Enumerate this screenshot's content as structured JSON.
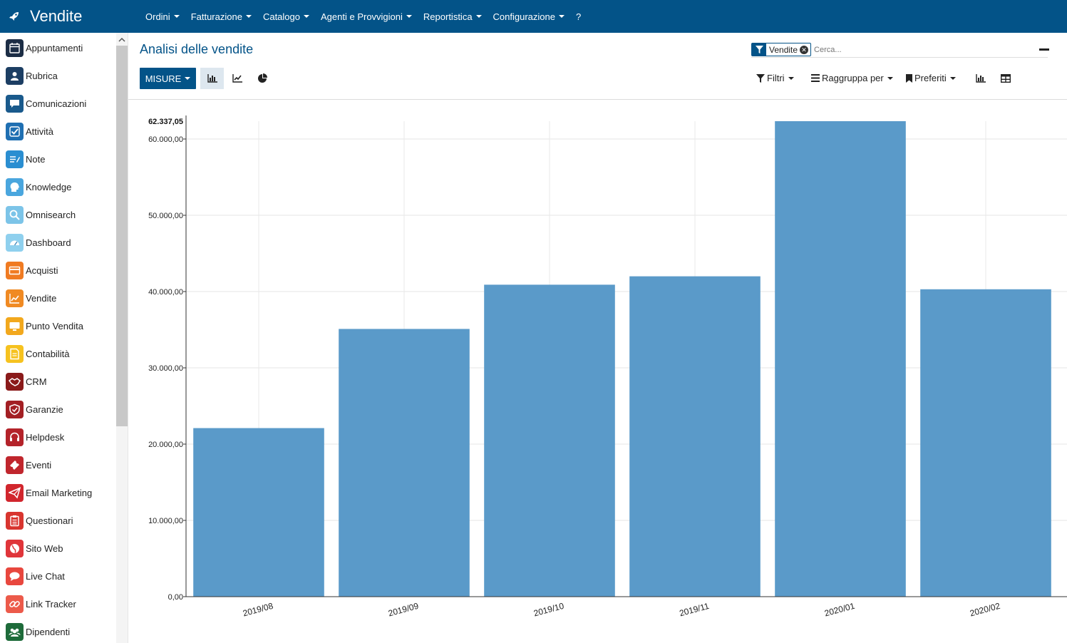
{
  "navbar": {
    "app_title": "Vendite",
    "menu": [
      {
        "label": "Ordini",
        "dropdown": true
      },
      {
        "label": "Fatturazione",
        "dropdown": true
      },
      {
        "label": "Catalogo",
        "dropdown": true
      },
      {
        "label": "Agenti e Provvigioni",
        "dropdown": true
      },
      {
        "label": "Reportistica",
        "dropdown": true
      },
      {
        "label": "Configurazione",
        "dropdown": true
      },
      {
        "label": "?",
        "dropdown": false
      }
    ]
  },
  "sidebar": {
    "items": [
      {
        "label": "Appuntamenti",
        "icon": "calendar-icon",
        "color": "#1c2d45"
      },
      {
        "label": "Rubrica",
        "icon": "contacts-icon",
        "color": "#1c3e63"
      },
      {
        "label": "Comunicazioni",
        "icon": "chat-bubble-icon",
        "color": "#1a5a8c"
      },
      {
        "label": "Attività",
        "icon": "check-icon",
        "color": "#1f6fb2"
      },
      {
        "label": "Note",
        "icon": "note-icon",
        "color": "#2a8ed1"
      },
      {
        "label": "Knowledge",
        "icon": "head-icon",
        "color": "#4aa6de"
      },
      {
        "label": "Omnisearch",
        "icon": "search-icon",
        "color": "#7cc4e8"
      },
      {
        "label": "Dashboard",
        "icon": "gauge-icon",
        "color": "#8fd0ee"
      },
      {
        "label": "Acquisti",
        "icon": "credit-card-icon",
        "color": "#f07b22"
      },
      {
        "label": "Vendite",
        "icon": "trend-icon",
        "color": "#f08a23"
      },
      {
        "label": "Punto Vendita",
        "icon": "monitor-icon",
        "color": "#f2a81d"
      },
      {
        "label": "Contabilità",
        "icon": "document-icon",
        "color": "#f6c21f"
      },
      {
        "label": "CRM",
        "icon": "handshake-icon",
        "color": "#8a1a1a"
      },
      {
        "label": "Garanzie",
        "icon": "shield-icon",
        "color": "#a31f24"
      },
      {
        "label": "Helpdesk",
        "icon": "headset-icon",
        "color": "#b4232a"
      },
      {
        "label": "Eventi",
        "icon": "ticket-icon",
        "color": "#c0262d"
      },
      {
        "label": "Email Marketing",
        "icon": "paper-plane-icon",
        "color": "#d1262d"
      },
      {
        "label": "Questionari",
        "icon": "clipboard-icon",
        "color": "#d8352f"
      },
      {
        "label": "Sito Web",
        "icon": "globe-icon",
        "color": "#e0353a"
      },
      {
        "label": "Live Chat",
        "icon": "chat-icon",
        "color": "#e8473e"
      },
      {
        "label": "Link Tracker",
        "icon": "link-icon",
        "color": "#ec5a4a"
      },
      {
        "label": "Dipendenti",
        "icon": "users-icon",
        "color": "#1e6b3a"
      }
    ]
  },
  "control_panel": {
    "title": "Analisi delle vendite",
    "facet_label": "Vendite",
    "search_placeholder": "Cerca...",
    "measures_label": "MISURE",
    "filters_label": "Filtri",
    "groupby_label": "Raggruppa per",
    "favorites_label": "Preferiti"
  },
  "colors": {
    "navbar": "#035388",
    "bar": "#5a9ac9",
    "accent": "#035388"
  },
  "chart_data": {
    "type": "bar",
    "categories": [
      "2019/08",
      "2019/09",
      "2019/10",
      "2019/11",
      "2020/01",
      "2020/02"
    ],
    "values": [
      22100,
      35100,
      40900,
      42000,
      62337.05,
      40300
    ],
    "y_max_label": "62.337,05",
    "y_ticks": [
      "0,00",
      "10.000,00",
      "20.000,00",
      "30.000,00",
      "40.000,00",
      "50.000,00",
      "60.000,00"
    ],
    "ylim": [
      0,
      62337.05
    ],
    "grid": true,
    "title": "",
    "xlabel": "",
    "ylabel": ""
  }
}
